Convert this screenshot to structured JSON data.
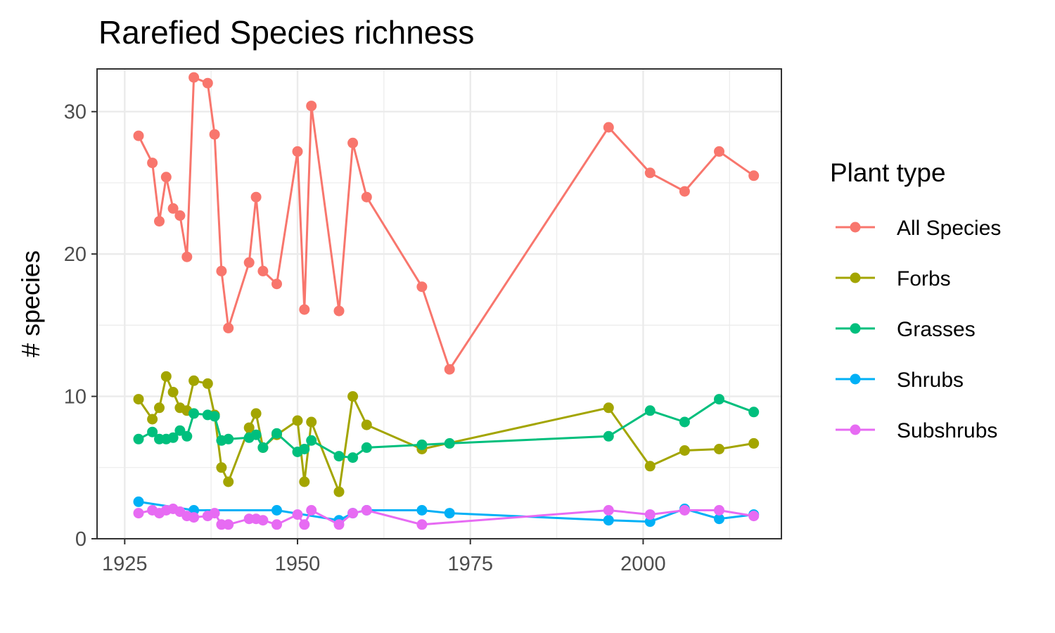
{
  "chart_data": {
    "type": "line",
    "title": "Rarefied Species richness",
    "xlabel": "",
    "ylabel": "# species",
    "xlim": [
      1921,
      2020
    ],
    "ylim": [
      0,
      33
    ],
    "x_ticks": [
      1925,
      1950,
      1975,
      2000
    ],
    "y_ticks": [
      0,
      10,
      20,
      30
    ],
    "grid": true,
    "legend": {
      "title": "Plant type",
      "position": "right"
    },
    "series": [
      {
        "name": "All Species",
        "color": "#F8766D",
        "points": [
          [
            1927,
            28.3
          ],
          [
            1929,
            26.4
          ],
          [
            1930,
            22.3
          ],
          [
            1931,
            25.4
          ],
          [
            1932,
            23.2
          ],
          [
            1933,
            22.7
          ],
          [
            1934,
            19.8
          ],
          [
            1935,
            32.4
          ],
          [
            1937,
            32.0
          ],
          [
            1938,
            28.4
          ],
          [
            1939,
            18.8
          ],
          [
            1940,
            14.8
          ],
          [
            1943,
            19.4
          ],
          [
            1944,
            24.0
          ],
          [
            1945,
            18.8
          ],
          [
            1947,
            17.9
          ],
          [
            1950,
            27.2
          ],
          [
            1951,
            16.1
          ],
          [
            1952,
            30.4
          ],
          [
            1956,
            16.0
          ],
          [
            1958,
            27.8
          ],
          [
            1960,
            24.0
          ],
          [
            1968,
            17.7
          ],
          [
            1972,
            11.9
          ],
          [
            1995,
            28.9
          ],
          [
            2001,
            25.7
          ],
          [
            2006,
            24.4
          ],
          [
            2011,
            27.2
          ],
          [
            2016,
            25.5
          ]
        ]
      },
      {
        "name": "Forbs",
        "color": "#A3A500",
        "points": [
          [
            1927,
            9.8
          ],
          [
            1929,
            8.4
          ],
          [
            1930,
            9.2
          ],
          [
            1931,
            11.4
          ],
          [
            1932,
            10.3
          ],
          [
            1933,
            9.2
          ],
          [
            1934,
            9.0
          ],
          [
            1935,
            11.1
          ],
          [
            1937,
            10.9
          ],
          [
            1938,
            8.7
          ],
          [
            1939,
            5.0
          ],
          [
            1940,
            4.0
          ],
          [
            1943,
            7.8
          ],
          [
            1944,
            8.8
          ],
          [
            1945,
            6.4
          ],
          [
            1947,
            7.3
          ],
          [
            1950,
            8.3
          ],
          [
            1951,
            4.0
          ],
          [
            1952,
            8.2
          ],
          [
            1956,
            3.3
          ],
          [
            1958,
            10.0
          ],
          [
            1960,
            8.0
          ],
          [
            1968,
            6.3
          ],
          [
            1995,
            9.2
          ],
          [
            2001,
            5.1
          ],
          [
            2006,
            6.2
          ],
          [
            2011,
            6.3
          ],
          [
            2016,
            6.7
          ]
        ]
      },
      {
        "name": "Grasses",
        "color": "#00BF7D",
        "points": [
          [
            1927,
            7.0
          ],
          [
            1929,
            7.5
          ],
          [
            1930,
            7.0
          ],
          [
            1931,
            7.0
          ],
          [
            1932,
            7.1
          ],
          [
            1933,
            7.6
          ],
          [
            1934,
            7.2
          ],
          [
            1935,
            8.8
          ],
          [
            1937,
            8.7
          ],
          [
            1938,
            8.6
          ],
          [
            1939,
            6.9
          ],
          [
            1940,
            7.0
          ],
          [
            1943,
            7.1
          ],
          [
            1944,
            7.3
          ],
          [
            1945,
            6.4
          ],
          [
            1947,
            7.4
          ],
          [
            1950,
            6.1
          ],
          [
            1951,
            6.3
          ],
          [
            1952,
            6.9
          ],
          [
            1956,
            5.8
          ],
          [
            1958,
            5.7
          ],
          [
            1960,
            6.4
          ],
          [
            1968,
            6.6
          ],
          [
            1972,
            6.7
          ],
          [
            1995,
            7.2
          ],
          [
            2001,
            9.0
          ],
          [
            2006,
            8.2
          ],
          [
            2011,
            9.8
          ],
          [
            2016,
            8.9
          ]
        ]
      },
      {
        "name": "Shrubs",
        "color": "#00B0F6",
        "points": [
          [
            1927,
            2.6
          ],
          [
            1935,
            2.0
          ],
          [
            1947,
            2.0
          ],
          [
            1956,
            1.3
          ],
          [
            1958,
            1.8
          ],
          [
            1960,
            2.0
          ],
          [
            1968,
            2.0
          ],
          [
            1972,
            1.8
          ],
          [
            1995,
            1.3
          ],
          [
            2001,
            1.2
          ],
          [
            2006,
            2.1
          ],
          [
            2011,
            1.4
          ],
          [
            2016,
            1.7
          ]
        ]
      },
      {
        "name": "Subshrubs",
        "color": "#E76BF3",
        "points": [
          [
            1927,
            1.8
          ],
          [
            1929,
            2.0
          ],
          [
            1930,
            1.8
          ],
          [
            1931,
            2.0
          ],
          [
            1932,
            2.1
          ],
          [
            1933,
            1.9
          ],
          [
            1934,
            1.6
          ],
          [
            1935,
            1.5
          ],
          [
            1937,
            1.6
          ],
          [
            1938,
            1.8
          ],
          [
            1939,
            1.0
          ],
          [
            1940,
            1.0
          ],
          [
            1943,
            1.4
          ],
          [
            1944,
            1.4
          ],
          [
            1945,
            1.3
          ],
          [
            1947,
            1.0
          ],
          [
            1950,
            1.7
          ],
          [
            1951,
            1.0
          ],
          [
            1952,
            2.0
          ],
          [
            1956,
            1.0
          ],
          [
            1958,
            1.8
          ],
          [
            1960,
            2.0
          ],
          [
            1968,
            1.0
          ],
          [
            1995,
            2.0
          ],
          [
            2001,
            1.7
          ],
          [
            2006,
            2.0
          ],
          [
            2011,
            2.0
          ],
          [
            2016,
            1.6
          ]
        ]
      }
    ]
  }
}
